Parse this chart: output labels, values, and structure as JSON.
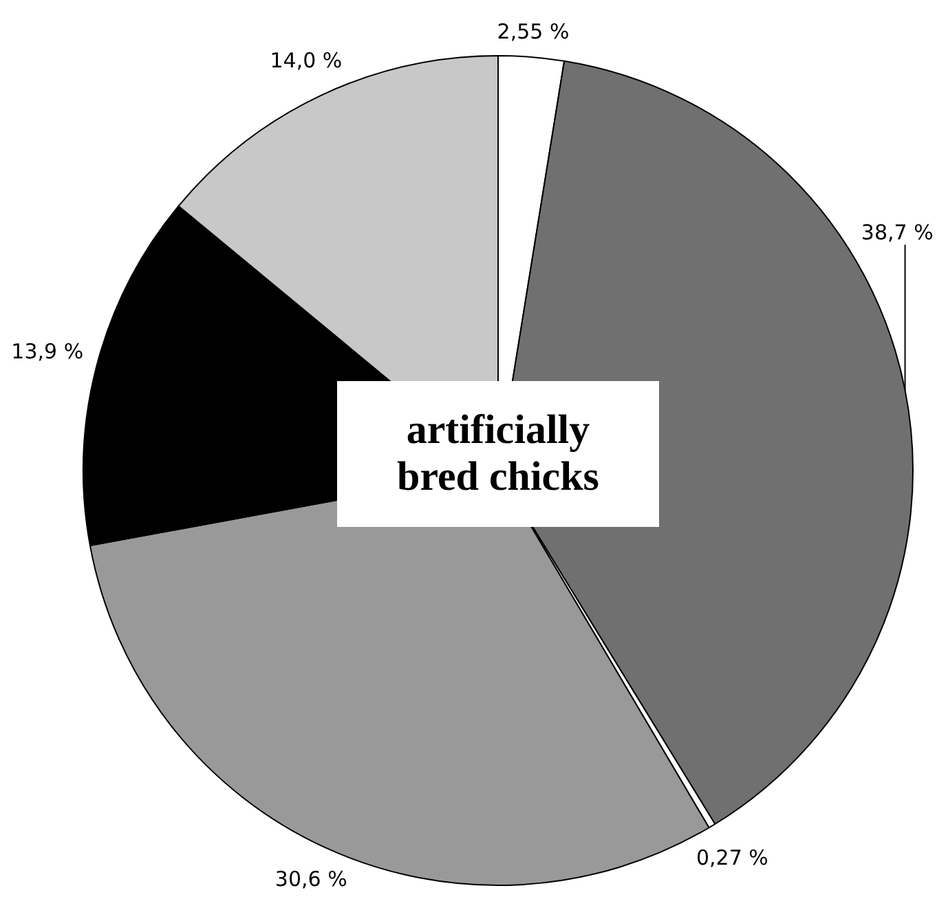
{
  "chart_data": {
    "type": "pie",
    "title": "artificially bred chicks",
    "categories": [
      null,
      null,
      null,
      null,
      null,
      null
    ],
    "values": [
      2.55,
      38.7,
      0.27,
      30.6,
      13.9,
      14.0
    ],
    "colors": [
      "#ffffff",
      "#707070",
      "#ffffff",
      "#999999",
      "#000000",
      "#c8c8c8"
    ],
    "value_labels": [
      "2,55 %",
      "38,7 %",
      "0,27 %",
      "30,6 %",
      "13,9 %",
      "14,0 %"
    ],
    "legend": false
  }
}
